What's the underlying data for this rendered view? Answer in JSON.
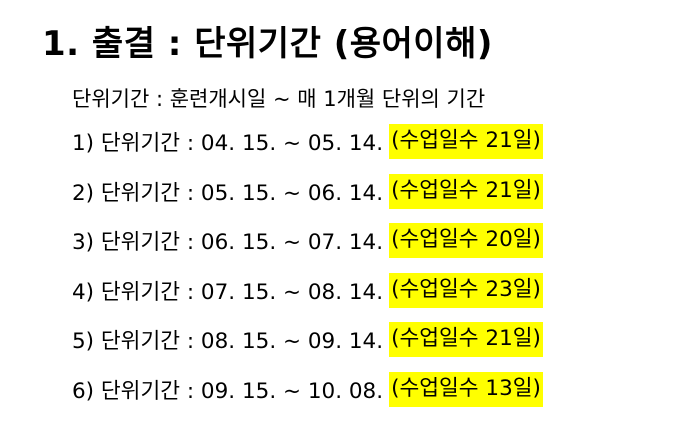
{
  "heading": "1. 출결 : 단위기간 (용어이해)",
  "definition": "단위기간 : 훈련개시일 ~ 매 1개월 단위의 기간",
  "highlight_color": "#ffff00",
  "periods": [
    {
      "text": "1) 단위기간 : 04. 15. ~ 05. 14.",
      "days": "(수업일수 21일)"
    },
    {
      "text": "2) 단위기간 : 05. 15. ~ 06. 14.",
      "days": "(수업일수 21일)"
    },
    {
      "text": "3) 단위기간 : 06. 15. ~ 07. 14.",
      "days": "(수업일수 20일)"
    },
    {
      "text": "4) 단위기간 : 07. 15. ~ 08. 14.",
      "days": "(수업일수 23일)"
    },
    {
      "text": "5) 단위기간 : 08. 15. ~ 09. 14.",
      "days": "(수업일수 21일)"
    },
    {
      "text": "6) 단위기간 : 09. 15. ~ 10. 08.",
      "days": "(수업일수 13일)"
    }
  ]
}
